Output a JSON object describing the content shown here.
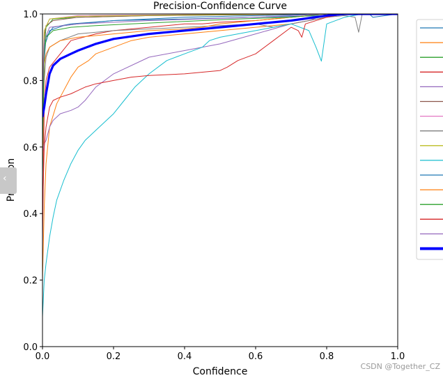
{
  "chart_data": {
    "type": "line",
    "title": "Precision-Confidence Curve",
    "xlabel": "Confidence",
    "ylabel": "Precision",
    "xlim": [
      0,
      1
    ],
    "ylim": [
      0,
      1
    ],
    "x_ticks": [
      "0.0",
      "0.2",
      "0.4",
      "0.6",
      "0.8",
      "1.0"
    ],
    "y_ticks": [
      "0.0",
      "0.2",
      "0.4",
      "0.6",
      "0.8",
      "1.0"
    ],
    "grid": false,
    "legend": "outside-right",
    "series": [
      {
        "color": "#1f77b4",
        "width": 1,
        "points": [
          [
            0,
            0.52
          ],
          [
            0.005,
            0.86
          ],
          [
            0.01,
            0.93
          ],
          [
            0.03,
            0.96
          ],
          [
            0.08,
            0.97
          ],
          [
            0.2,
            0.98
          ],
          [
            0.4,
            0.985
          ],
          [
            0.6,
            0.99
          ],
          [
            0.8,
            0.995
          ],
          [
            0.9,
            1.0
          ],
          [
            0.92,
            1.0
          ],
          [
            0.93,
            0.99
          ],
          [
            1.0,
            1.0
          ]
        ]
      },
      {
        "color": "#ff7f0e",
        "width": 1,
        "points": [
          [
            0,
            0.2
          ],
          [
            0.005,
            0.42
          ],
          [
            0.01,
            0.55
          ],
          [
            0.02,
            0.66
          ],
          [
            0.04,
            0.73
          ],
          [
            0.06,
            0.77
          ],
          [
            0.08,
            0.81
          ],
          [
            0.1,
            0.84
          ],
          [
            0.13,
            0.86
          ],
          [
            0.15,
            0.88
          ],
          [
            0.2,
            0.9
          ],
          [
            0.25,
            0.92
          ],
          [
            0.3,
            0.93
          ],
          [
            0.4,
            0.94
          ],
          [
            0.5,
            0.95
          ],
          [
            0.6,
            0.96
          ],
          [
            0.7,
            0.97
          ],
          [
            0.8,
            0.99
          ],
          [
            0.85,
            1.0
          ],
          [
            1.0,
            1.0
          ]
        ]
      },
      {
        "color": "#2ca02c",
        "width": 1,
        "points": [
          [
            0,
            0.5
          ],
          [
            0.005,
            0.9
          ],
          [
            0.01,
            0.96
          ],
          [
            0.03,
            0.985
          ],
          [
            0.1,
            0.99
          ],
          [
            0.3,
            0.995
          ],
          [
            0.6,
            0.998
          ],
          [
            0.8,
            1.0
          ],
          [
            1.0,
            1.0
          ]
        ]
      },
      {
        "color": "#d62728",
        "width": 1,
        "points": [
          [
            0,
            0.3
          ],
          [
            0.005,
            0.72
          ],
          [
            0.01,
            0.8
          ],
          [
            0.02,
            0.84
          ],
          [
            0.05,
            0.88
          ],
          [
            0.08,
            0.92
          ],
          [
            0.15,
            0.94
          ],
          [
            0.2,
            0.95
          ],
          [
            0.25,
            0.955
          ],
          [
            0.3,
            0.96
          ],
          [
            0.35,
            0.965
          ],
          [
            0.4,
            0.97
          ],
          [
            0.45,
            0.97
          ],
          [
            0.5,
            0.975
          ],
          [
            0.6,
            0.98
          ],
          [
            0.7,
            0.99
          ],
          [
            0.8,
            1.0
          ],
          [
            1.0,
            1.0
          ]
        ]
      },
      {
        "color": "#9467bd",
        "width": 1,
        "points": [
          [
            0,
            0.58
          ],
          [
            0.005,
            0.61
          ],
          [
            0.01,
            0.62
          ],
          [
            0.02,
            0.66
          ],
          [
            0.03,
            0.68
          ],
          [
            0.05,
            0.7
          ],
          [
            0.08,
            0.71
          ],
          [
            0.1,
            0.72
          ],
          [
            0.12,
            0.74
          ],
          [
            0.15,
            0.78
          ],
          [
            0.2,
            0.82
          ],
          [
            0.3,
            0.87
          ],
          [
            0.4,
            0.89
          ],
          [
            0.5,
            0.91
          ],
          [
            0.6,
            0.94
          ],
          [
            0.7,
            0.97
          ],
          [
            0.75,
            0.98
          ],
          [
            0.8,
            1.0
          ],
          [
            1.0,
            1.0
          ]
        ]
      },
      {
        "color": "#8c564b",
        "width": 1,
        "points": [
          [
            0,
            0.6
          ],
          [
            0.005,
            0.93
          ],
          [
            0.01,
            0.965
          ],
          [
            0.03,
            0.98
          ],
          [
            0.1,
            0.99
          ],
          [
            0.3,
            0.995
          ],
          [
            0.6,
            0.998
          ],
          [
            0.8,
            1.0
          ],
          [
            1.0,
            1.0
          ]
        ]
      },
      {
        "color": "#e377c2",
        "width": 1,
        "points": [
          [
            0,
            0.8
          ],
          [
            0.005,
            0.95
          ],
          [
            0.02,
            0.985
          ],
          [
            0.1,
            0.995
          ],
          [
            0.4,
            0.998
          ],
          [
            0.7,
            1.0
          ],
          [
            1.0,
            1.0
          ]
        ]
      },
      {
        "color": "#7f7f7f",
        "width": 1,
        "points": [
          [
            0,
            0.55
          ],
          [
            0.005,
            0.8
          ],
          [
            0.01,
            0.87
          ],
          [
            0.02,
            0.9
          ],
          [
            0.05,
            0.92
          ],
          [
            0.1,
            0.94
          ],
          [
            0.2,
            0.95
          ],
          [
            0.3,
            0.955
          ],
          [
            0.4,
            0.96
          ],
          [
            0.5,
            0.965
          ],
          [
            0.6,
            0.97
          ],
          [
            0.65,
            0.96
          ],
          [
            0.7,
            0.97
          ],
          [
            0.75,
            0.98
          ],
          [
            0.8,
            0.99
          ],
          [
            0.85,
            0.995
          ],
          [
            0.88,
            0.99
          ],
          [
            0.89,
            0.945
          ],
          [
            0.9,
            1.0
          ],
          [
            1.0,
            1.0
          ]
        ]
      },
      {
        "color": "#bcbd22",
        "width": 1,
        "points": [
          [
            0,
            0.75
          ],
          [
            0.005,
            0.95
          ],
          [
            0.02,
            0.985
          ],
          [
            0.1,
            0.993
          ],
          [
            0.4,
            0.997
          ],
          [
            0.7,
            1.0
          ],
          [
            1.0,
            1.0
          ]
        ]
      },
      {
        "color": "#17becf",
        "width": 1,
        "points": [
          [
            0,
            0.09
          ],
          [
            0.005,
            0.2
          ],
          [
            0.01,
            0.25
          ],
          [
            0.02,
            0.33
          ],
          [
            0.03,
            0.39
          ],
          [
            0.04,
            0.44
          ],
          [
            0.06,
            0.5
          ],
          [
            0.08,
            0.55
          ],
          [
            0.1,
            0.59
          ],
          [
            0.12,
            0.62
          ],
          [
            0.15,
            0.65
          ],
          [
            0.18,
            0.68
          ],
          [
            0.2,
            0.7
          ],
          [
            0.23,
            0.74
          ],
          [
            0.26,
            0.78
          ],
          [
            0.3,
            0.82
          ],
          [
            0.35,
            0.86
          ],
          [
            0.4,
            0.88
          ],
          [
            0.45,
            0.9
          ],
          [
            0.47,
            0.92
          ],
          [
            0.5,
            0.93
          ],
          [
            0.55,
            0.94
          ],
          [
            0.6,
            0.95
          ],
          [
            0.65,
            0.96
          ],
          [
            0.7,
            0.97
          ],
          [
            0.75,
            0.95
          ],
          [
            0.77,
            0.9
          ],
          [
            0.785,
            0.858
          ],
          [
            0.8,
            0.97
          ],
          [
            0.85,
            0.99
          ],
          [
            0.9,
            1.0
          ],
          [
            1.0,
            1.0
          ]
        ]
      },
      {
        "color": "#1f77b4",
        "width": 1,
        "points": [
          [
            0,
            0.65
          ],
          [
            0.005,
            0.9
          ],
          [
            0.02,
            0.95
          ],
          [
            0.06,
            0.965
          ],
          [
            0.1,
            0.97
          ],
          [
            0.15,
            0.975
          ],
          [
            0.2,
            0.98
          ],
          [
            0.4,
            0.99
          ],
          [
            0.6,
            0.995
          ],
          [
            0.8,
            1.0
          ],
          [
            1.0,
            1.0
          ]
        ]
      },
      {
        "color": "#ff7f0e",
        "width": 1,
        "points": [
          [
            0,
            0.55
          ],
          [
            0.005,
            0.85
          ],
          [
            0.01,
            0.88
          ],
          [
            0.02,
            0.9
          ],
          [
            0.05,
            0.92
          ],
          [
            0.1,
            0.93
          ],
          [
            0.2,
            0.94
          ],
          [
            0.3,
            0.95
          ],
          [
            0.4,
            0.955
          ],
          [
            0.45,
            0.96
          ],
          [
            0.5,
            0.97
          ],
          [
            0.6,
            0.98
          ],
          [
            0.7,
            0.99
          ],
          [
            0.8,
            1.0
          ],
          [
            1.0,
            1.0
          ]
        ]
      },
      {
        "color": "#2ca02c",
        "width": 1,
        "points": [
          [
            0,
            0.6
          ],
          [
            0.005,
            0.88
          ],
          [
            0.01,
            0.93
          ],
          [
            0.03,
            0.95
          ],
          [
            0.08,
            0.96
          ],
          [
            0.15,
            0.965
          ],
          [
            0.25,
            0.97
          ],
          [
            0.35,
            0.975
          ],
          [
            0.45,
            0.98
          ],
          [
            0.55,
            0.985
          ],
          [
            0.7,
            0.99
          ],
          [
            0.8,
            1.0
          ],
          [
            1.0,
            1.0
          ]
        ]
      },
      {
        "color": "#d62728",
        "width": 1,
        "points": [
          [
            0,
            0.4
          ],
          [
            0.005,
            0.6
          ],
          [
            0.01,
            0.66
          ],
          [
            0.02,
            0.72
          ],
          [
            0.03,
            0.74
          ],
          [
            0.05,
            0.75
          ],
          [
            0.08,
            0.76
          ],
          [
            0.1,
            0.77
          ],
          [
            0.12,
            0.78
          ],
          [
            0.15,
            0.79
          ],
          [
            0.2,
            0.8
          ],
          [
            0.25,
            0.81
          ],
          [
            0.3,
            0.815
          ],
          [
            0.4,
            0.82
          ],
          [
            0.5,
            0.83
          ],
          [
            0.52,
            0.84
          ],
          [
            0.55,
            0.86
          ],
          [
            0.6,
            0.88
          ],
          [
            0.65,
            0.92
          ],
          [
            0.7,
            0.96
          ],
          [
            0.72,
            0.95
          ],
          [
            0.73,
            0.93
          ],
          [
            0.74,
            0.97
          ],
          [
            0.8,
            0.99
          ],
          [
            0.85,
            1.0
          ],
          [
            1.0,
            1.0
          ]
        ]
      },
      {
        "color": "#9467bd",
        "width": 1,
        "points": [
          [
            0,
            0.75
          ],
          [
            0.005,
            0.92
          ],
          [
            0.02,
            0.96
          ],
          [
            0.1,
            0.97
          ],
          [
            0.3,
            0.98
          ],
          [
            0.6,
            0.99
          ],
          [
            0.8,
            1.0
          ],
          [
            1.0,
            1.0
          ]
        ]
      },
      {
        "color": "#0000ff",
        "width": 3.2,
        "points": [
          [
            0,
            0.69
          ],
          [
            0.005,
            0.72
          ],
          [
            0.01,
            0.76
          ],
          [
            0.02,
            0.82
          ],
          [
            0.03,
            0.845
          ],
          [
            0.05,
            0.865
          ],
          [
            0.08,
            0.88
          ],
          [
            0.1,
            0.89
          ],
          [
            0.15,
            0.91
          ],
          [
            0.2,
            0.925
          ],
          [
            0.3,
            0.94
          ],
          [
            0.4,
            0.95
          ],
          [
            0.5,
            0.96
          ],
          [
            0.6,
            0.97
          ],
          [
            0.7,
            0.98
          ],
          [
            0.8,
            0.995
          ],
          [
            0.85,
            1.0
          ],
          [
            1.0,
            1.0
          ]
        ]
      }
    ]
  },
  "watermark": "CSDN @Together_CZ",
  "side_tab_glyph": "‹"
}
